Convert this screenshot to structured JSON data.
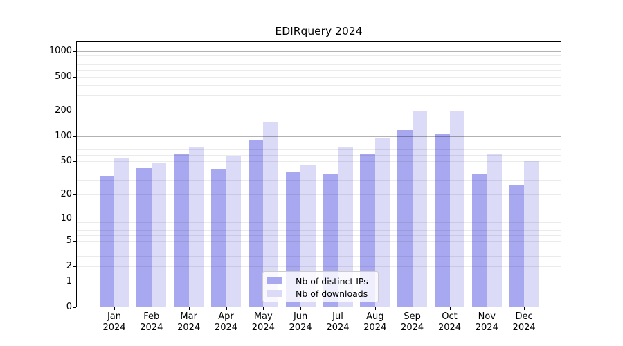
{
  "chart_data": {
    "type": "bar",
    "title": "EDIRquery 2024",
    "categories": [
      "Jan 2024",
      "Feb 2024",
      "Mar 2024",
      "Apr 2024",
      "May 2024",
      "Jun 2024",
      "Jul 2024",
      "Aug 2024",
      "Sep 2024",
      "Oct 2024",
      "Nov 2024",
      "Dec 2024"
    ],
    "month_labels": [
      "Jan",
      "Feb",
      "Mar",
      "Apr",
      "May",
      "Jun",
      "Jul",
      "Aug",
      "Sep",
      "Oct",
      "Nov",
      "Dec"
    ],
    "year_label": "2024",
    "series": [
      {
        "name": "Nb of distinct IPs",
        "color": "#a8a8f0",
        "values": [
          34,
          42,
          61,
          41,
          90,
          37,
          36,
          61,
          118,
          106,
          36,
          26
        ]
      },
      {
        "name": "Nb of downloads",
        "color": "#dbdbf7",
        "values": [
          55,
          48,
          75,
          59,
          145,
          45,
          75,
          94,
          195,
          199,
          61,
          50
        ]
      }
    ],
    "yscale": "log10(1+x)",
    "ylim": [
      0,
      1323
    ],
    "ytick_values": [
      0,
      1,
      2,
      5,
      10,
      20,
      50,
      100,
      200,
      500,
      1000
    ],
    "ytick_labels": [
      "0",
      "1",
      "2",
      "5",
      "10",
      "20",
      "50",
      "100",
      "200",
      "500",
      "1000"
    ],
    "grid": "horizontal major+minor, drawn over bars",
    "legend_position": "lower center"
  },
  "style": {
    "background": "#ffffff",
    "spine_color": "#000000",
    "grid_major_color": "rgba(0,0,0,0.30)",
    "grid_minor_color": "rgba(0,0,0,0.08)",
    "legend_border_color": "#cccccc",
    "legend_background": "rgba(255,255,255,0.8)"
  }
}
